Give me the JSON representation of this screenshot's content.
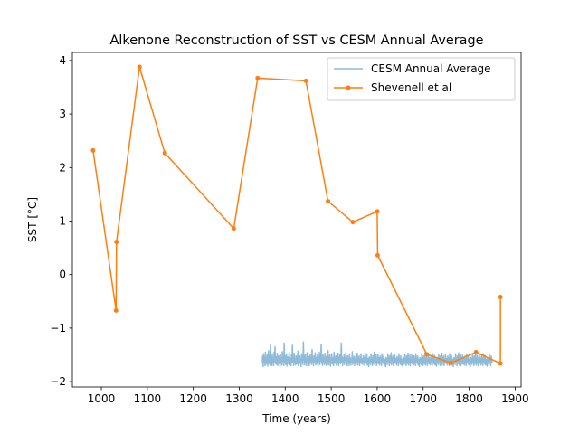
{
  "chart_data": {
    "type": "line",
    "title": "Alkenone Reconstruction of SST vs CESM Annual Average",
    "xlabel": "Time (years)",
    "ylabel": "SST [°C]",
    "xlim": [
      937,
      1913
    ],
    "ylim": [
      -2.1,
      4.15
    ],
    "xticks": [
      1000,
      1100,
      1200,
      1300,
      1400,
      1500,
      1600,
      1700,
      1800,
      1900
    ],
    "yticks": [
      -2,
      -1,
      0,
      1,
      2,
      3,
      4
    ],
    "grid": false,
    "legend_position": "top-right",
    "series": [
      {
        "name": "CESM Annual Average",
        "color": "#1f77b4",
        "opacity": 0.5,
        "marker": "none",
        "x_start": 1350,
        "x_end": 1850,
        "values": [
          -1.66,
          -1.52,
          -1.72,
          -1.48,
          -1.62,
          -1.55,
          -1.7,
          -1.45,
          -1.68,
          -1.58,
          -1.63,
          -1.5,
          -1.71,
          -1.6,
          -1.42,
          -1.66,
          -1.55,
          -1.69,
          -1.3,
          -1.62,
          -1.57,
          -1.7,
          -1.48,
          -1.64,
          -1.56,
          -1.7,
          -1.45,
          -1.62,
          -1.35,
          -1.66,
          -1.54,
          -1.68,
          -1.59,
          -1.47,
          -1.7,
          -1.6,
          -1.52,
          -1.66,
          -1.56,
          -1.72,
          -1.5,
          -1.63,
          -1.58,
          -1.69,
          -1.44,
          -1.62,
          -1.56,
          -1.7,
          -1.28,
          -1.64,
          -1.52,
          -1.68,
          -1.6,
          -1.48,
          -1.71,
          -1.58,
          -1.54,
          -1.66,
          -1.62,
          -1.45,
          -1.69,
          -1.56,
          -1.6,
          -1.7,
          -1.5,
          -1.65,
          -1.32,
          -1.62,
          -1.55,
          -1.7,
          -1.47,
          -1.64,
          -1.58,
          -1.69,
          -1.52,
          -1.61,
          -1.67,
          -1.56,
          -1.43,
          -1.7,
          -1.59,
          -1.63,
          -1.52,
          -1.66,
          -1.58,
          -1.72,
          -1.48,
          -1.62,
          -1.55,
          -1.68,
          -1.26,
          -1.6,
          -1.54,
          -1.69,
          -1.5,
          -1.64,
          -1.57,
          -1.7,
          -1.46,
          -1.62,
          -1.58,
          -1.66,
          -1.53,
          -1.7,
          -1.6,
          -1.49,
          -1.65,
          -1.56,
          -1.68,
          -1.4,
          -1.62,
          -1.58,
          -1.7,
          -1.52,
          -1.64,
          -1.57,
          -1.46,
          -1.69,
          -1.6,
          -1.55,
          -1.66,
          -1.5,
          -1.71,
          -1.58,
          -1.62,
          -1.45,
          -1.68,
          -1.55,
          -1.6,
          -1.3,
          -1.66,
          -1.56,
          -1.7,
          -1.5,
          -1.62,
          -1.58,
          -1.68,
          -1.47,
          -1.63,
          -1.55,
          -1.7,
          -1.52,
          -1.6,
          -1.66,
          -1.42,
          -1.69,
          -1.57,
          -1.62,
          -1.5,
          -1.71,
          -1.58,
          -1.64,
          -1.48,
          -1.67,
          -1.56,
          -1.6,
          -1.7,
          -1.45,
          -1.63,
          -1.55,
          -1.66,
          -1.52,
          -1.69,
          -1.6,
          -1.58,
          -1.65,
          -1.47,
          -1.7,
          -1.56,
          -1.62,
          -1.5,
          -1.67,
          -1.58,
          -1.28,
          -1.64,
          -1.54,
          -1.7,
          -1.56,
          -1.62,
          -1.5,
          -1.68,
          -1.57,
          -1.6,
          -1.46,
          -1.66,
          -1.55,
          -1.7,
          -1.52,
          -1.62,
          -1.58,
          -1.7,
          -1.48,
          -1.65,
          -1.56,
          -1.69,
          -1.58,
          -1.62,
          -1.44,
          -1.68,
          -1.56,
          -1.6,
          -1.53,
          -1.7,
          -1.58,
          -1.64,
          -1.5,
          -1.66,
          -1.6,
          -1.47,
          -1.69,
          -1.56,
          -1.62,
          -1.52,
          -1.7,
          -1.58,
          -1.64,
          -1.48,
          -1.66,
          -1.57,
          -1.6,
          -1.68,
          -1.52,
          -1.63,
          -1.55,
          -1.7,
          -1.46,
          -1.62,
          -1.58,
          -1.66,
          -1.5,
          -1.69,
          -1.57,
          -1.6,
          -1.72,
          -1.54,
          -1.64,
          -1.58,
          -1.68,
          -1.48,
          -1.62,
          -1.56,
          -1.7,
          -1.52,
          -1.6,
          -1.66,
          -1.45,
          -1.68,
          -1.57,
          -1.62,
          -1.5,
          -1.7,
          -1.59,
          -1.64,
          -1.49,
          -1.67,
          -1.55,
          -1.61,
          -1.69,
          -1.52,
          -1.64,
          -1.56,
          -1.7,
          -1.48,
          -1.62,
          -1.58,
          -1.66,
          -1.51,
          -1.69,
          -1.58,
          -1.6,
          -1.72,
          -1.55,
          -1.63,
          -1.57,
          -1.68,
          -1.48,
          -1.62,
          -1.56,
          -1.7,
          -1.52,
          -1.6,
          -1.66,
          -1.46,
          -1.69,
          -1.56,
          -1.62,
          -1.52,
          -1.7,
          -1.58,
          -1.64,
          -1.5,
          -1.66,
          -1.57,
          -1.61,
          -1.69,
          -1.53,
          -1.64,
          -1.56,
          -1.7,
          -1.48,
          -1.62,
          -1.58,
          -1.67,
          -1.52,
          -1.69,
          -1.58,
          -1.6,
          -1.71,
          -1.55,
          -1.63,
          -1.57,
          -1.68,
          -1.49,
          -1.62,
          -1.56,
          -1.7,
          -1.52,
          -1.6,
          -1.66,
          -1.47,
          -1.69,
          -1.57,
          -1.62,
          -1.5,
          -1.7,
          -1.59,
          -1.64,
          -1.5,
          -1.66,
          -1.56,
          -1.61,
          -1.69,
          -1.52,
          -1.64,
          -1.57,
          -1.7,
          -1.48,
          -1.62,
          -1.58,
          -1.66,
          -1.52,
          -1.69,
          -1.58,
          -1.6,
          -1.72,
          -1.55,
          -1.63,
          -1.57,
          -1.68,
          -1.48,
          -1.62,
          -1.56,
          -1.7,
          -1.52,
          -1.6,
          -1.66,
          -1.46,
          -1.69,
          -1.57,
          -1.62,
          -1.51,
          -1.7,
          -1.58,
          -1.64,
          -1.49,
          -1.67,
          -1.56,
          -1.61,
          -1.69,
          -1.53,
          -1.64,
          -1.56,
          -1.7,
          -1.48,
          -1.62,
          -1.58,
          -1.67,
          -1.51,
          -1.69,
          -1.58,
          -1.6,
          -1.71,
          -1.55,
          -1.63,
          -1.58,
          -1.68,
          -1.49,
          -1.62,
          -1.56,
          -1.7,
          -1.52,
          -1.6,
          -1.66,
          -1.47,
          -1.69,
          -1.56,
          -1.62,
          -1.52,
          -1.7,
          -1.58,
          -1.64,
          -1.5,
          -1.66,
          -1.57,
          -1.61,
          -1.69,
          -1.52,
          -1.64,
          -1.56,
          -1.7,
          -1.48,
          -1.62,
          -1.58,
          -1.66,
          -1.51,
          -1.69,
          -1.58,
          -1.6,
          -1.72,
          -1.55,
          -1.63,
          -1.57,
          -1.68,
          -1.48,
          -1.62,
          -1.56,
          -1.7,
          -1.52,
          -1.6,
          -1.66,
          -1.46,
          -1.69,
          -1.57,
          -1.62,
          -1.5,
          -1.7,
          -1.59,
          -1.64,
          -1.5,
          -1.67,
          -1.56,
          -1.61,
          -1.69,
          -1.53,
          -1.64,
          -1.57,
          -1.7,
          -1.49,
          -1.62,
          -1.58,
          -1.66,
          -1.52,
          -1.69,
          -1.58,
          -1.6,
          -1.72,
          -1.55,
          -1.63,
          -1.57,
          -1.68,
          -1.48,
          -1.62,
          -1.56,
          -1.7,
          -1.52,
          -1.6,
          -1.66,
          -1.46,
          -1.69,
          -1.57,
          -1.62,
          -1.51,
          -1.7,
          -1.58,
          -1.64,
          -1.5,
          -1.66,
          -1.56,
          -1.61,
          -1.69,
          -1.52,
          -1.64,
          -1.56,
          -1.7,
          -1.48,
          -1.62,
          -1.58,
          -1.67,
          -1.51,
          -1.69,
          -1.58,
          -1.6,
          -1.71,
          -1.55,
          -1.63,
          -1.57,
          -1.68,
          -1.49,
          -1.62,
          -1.56,
          -1.7,
          -1.52,
          -1.6,
          -1.66
        ]
      },
      {
        "name": "Shevenell et al",
        "color": "#ff7f0e",
        "opacity": 1,
        "marker": "circle",
        "points": [
          [
            982,
            2.32
          ],
          [
            1032,
            -0.67
          ],
          [
            1033,
            0.61
          ],
          [
            1083,
            3.88
          ],
          [
            1138,
            2.27
          ],
          [
            1288,
            0.86
          ],
          [
            1340,
            3.67
          ],
          [
            1445,
            3.62
          ],
          [
            1493,
            1.37
          ],
          [
            1547,
            0.98
          ],
          [
            1600,
            1.18
          ],
          [
            1601,
            0.36
          ],
          [
            1708,
            -1.49
          ],
          [
            1760,
            -1.65
          ],
          [
            1815,
            -1.45
          ],
          [
            1868,
            -1.66
          ],
          [
            1868,
            -0.42
          ]
        ]
      }
    ]
  }
}
